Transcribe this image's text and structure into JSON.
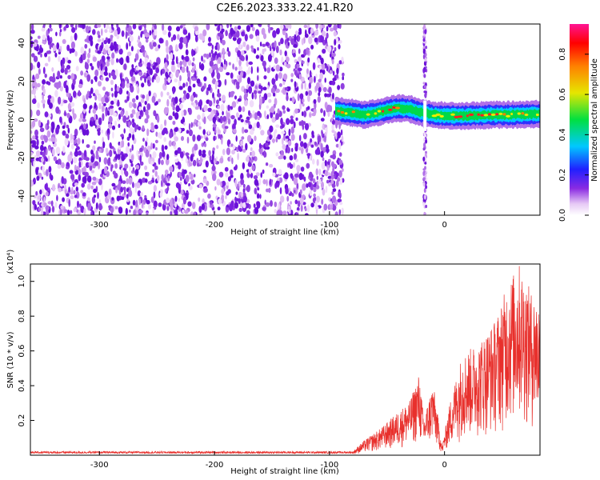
{
  "title": "C2E6.2023.333.22.41.R20",
  "chart_data": [
    {
      "type": "heatmap",
      "xlabel": "Height of straight line (km)",
      "ylabel": "Frequency (Hz)",
      "xlim": [
        -360,
        83
      ],
      "ylim": [
        -50,
        50
      ],
      "x_ticks": [
        -300,
        -200,
        -100,
        0
      ],
      "y_ticks": [
        -40,
        -20,
        0,
        20,
        40
      ],
      "colorbar": {
        "label": "Normalized spectral amplitude",
        "range": [
          0,
          0.95
        ],
        "ticks": [
          "0.0",
          "0.2",
          "0.4",
          "0.6",
          "0.8"
        ]
      },
      "noise_region_x": [
        -360,
        -88
      ],
      "signal_track": [
        {
          "x": -95,
          "y": 4.5
        },
        {
          "x": -80,
          "y": 3.5
        },
        {
          "x": -70,
          "y": 2.5
        },
        {
          "x": -60,
          "y": 3.5
        },
        {
          "x": -50,
          "y": 5.0
        },
        {
          "x": -40,
          "y": 6.0
        },
        {
          "x": -30,
          "y": 5.5
        },
        {
          "x": -22,
          "y": 4.0
        },
        {
          "x": -10,
          "y": 2.5
        },
        {
          "x": 0,
          "y": 2.0
        },
        {
          "x": 20,
          "y": 2.0
        },
        {
          "x": 40,
          "y": 2.5
        },
        {
          "x": 60,
          "y": 2.5
        },
        {
          "x": 83,
          "y": 3.0
        }
      ],
      "gap_stripe_x": -17
    },
    {
      "type": "line",
      "xlabel": "Height of straight line (km)",
      "ylabel": "SNR (10 * v/v)",
      "y_multiplier": "(x10⁴)",
      "xlim": [
        -360,
        83
      ],
      "ylim": [
        0,
        1.1
      ],
      "x_ticks": [
        -300,
        -200,
        -100,
        0
      ],
      "y_ticks": [
        "0.2",
        "0.4",
        "0.6",
        "0.8",
        "1.0"
      ],
      "color": "#e8302c",
      "envelope": [
        {
          "x": -360,
          "y": 0.02
        },
        {
          "x": -80,
          "y": 0.02
        },
        {
          "x": -70,
          "y": 0.08
        },
        {
          "x": -55,
          "y": 0.15
        },
        {
          "x": -40,
          "y": 0.24
        },
        {
          "x": -30,
          "y": 0.3
        },
        {
          "x": -22,
          "y": 0.45
        },
        {
          "x": -18,
          "y": 0.2
        },
        {
          "x": -10,
          "y": 0.4
        },
        {
          "x": -2,
          "y": 0.05
        },
        {
          "x": 5,
          "y": 0.3
        },
        {
          "x": 15,
          "y": 0.55
        },
        {
          "x": 30,
          "y": 0.62
        },
        {
          "x": 45,
          "y": 0.75
        },
        {
          "x": 55,
          "y": 0.95
        },
        {
          "x": 65,
          "y": 1.05
        },
        {
          "x": 75,
          "y": 0.9
        },
        {
          "x": 83,
          "y": 0.85
        }
      ]
    }
  ]
}
